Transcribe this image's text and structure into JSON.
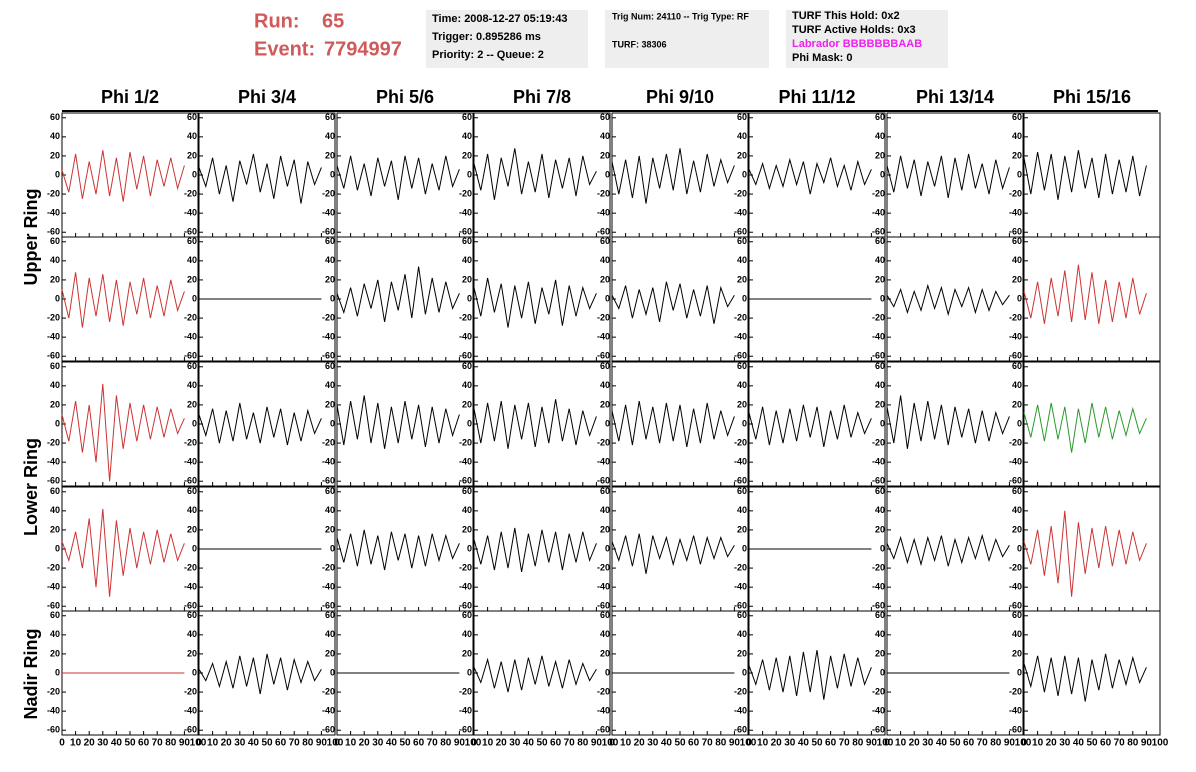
{
  "header": {
    "run_label": "Run:",
    "run": "65",
    "event_label": "Event:",
    "event": "7794997",
    "time": "Time: 2008-12-27 05:19:43",
    "trigger": "Trigger: 0.895286 ms",
    "priority": "Priority: 2 -- Queue: 2",
    "trig_num": "Trig Num: 24110 -- Trig Type: RF",
    "turf": "TURF: 38306",
    "turf_hold": "TURF This Hold: 0x2",
    "turf_active": "TURF Active Holds: 0x3",
    "labrador": "Labrador BBBBBBBAAB",
    "phi_mask": "Phi Mask: 0"
  },
  "chart_data": {
    "type": "line",
    "columns": [
      "Phi 1/2",
      "Phi 3/4",
      "Phi 5/6",
      "Phi 7/8",
      "Phi 9/10",
      "Phi 11/12",
      "Phi 13/14",
      "Phi 15/16"
    ],
    "ring_labels": [
      "Upper Ring",
      "Lower Ring",
      "Nadir Ring"
    ],
    "xlim": [
      0,
      100
    ],
    "xticks": [
      0,
      10,
      20,
      30,
      40,
      50,
      60,
      70,
      80,
      90,
      100
    ],
    "ylim": [
      -65,
      65
    ],
    "yticks": [
      -60,
      -40,
      -20,
      0,
      20,
      40,
      60
    ],
    "x": [
      0,
      5,
      10,
      15,
      20,
      25,
      30,
      35,
      40,
      45,
      50,
      55,
      60,
      65,
      70,
      75,
      80,
      85,
      90
    ],
    "panels": [
      {
        "color": "#cc3333",
        "values": [
          5,
          -18,
          22,
          -25,
          14,
          -20,
          26,
          -22,
          18,
          -28,
          24,
          -15,
          20,
          -22,
          16,
          -12,
          18,
          -14,
          10
        ]
      },
      {
        "color": "#000000",
        "values": [
          8,
          -12,
          18,
          -20,
          10,
          -28,
          15,
          -10,
          22,
          -18,
          12,
          -25,
          20,
          -12,
          16,
          -30,
          14,
          -10,
          8
        ]
      },
      {
        "color": "#000000",
        "values": [
          10,
          -14,
          20,
          -16,
          12,
          -22,
          18,
          -12,
          15,
          -26,
          20,
          -14,
          18,
          -20,
          12,
          -16,
          20,
          -12,
          6
        ]
      },
      {
        "color": "#000000",
        "values": [
          12,
          -16,
          22,
          -26,
          18,
          -12,
          28,
          -20,
          14,
          -18,
          22,
          -24,
          16,
          -14,
          18,
          -22,
          20,
          -10,
          4
        ]
      },
      {
        "color": "#000000",
        "values": [
          14,
          -20,
          16,
          -24,
          20,
          -30,
          18,
          -14,
          22,
          -16,
          28,
          -20,
          15,
          -18,
          22,
          -12,
          16,
          -8,
          10
        ]
      },
      {
        "color": "#000000",
        "values": [
          6,
          -10,
          12,
          -14,
          10,
          -12,
          16,
          -10,
          14,
          -20,
          12,
          -8,
          18,
          -12,
          10,
          -16,
          14,
          -10,
          6
        ]
      },
      {
        "color": "#000000",
        "values": [
          10,
          -18,
          20,
          -14,
          16,
          -22,
          14,
          -12,
          20,
          -24,
          18,
          -16,
          22,
          -14,
          12,
          -20,
          16,
          -14,
          8
        ]
      },
      {
        "color": "#000000",
        "values": [
          18,
          -20,
          24,
          -16,
          22,
          -26,
          20,
          -18,
          26,
          -14,
          18,
          -24,
          22,
          -20,
          16,
          -18,
          20,
          -22,
          10
        ]
      },
      {
        "color": "#cc3333",
        "values": [
          10,
          -20,
          28,
          -30,
          22,
          -18,
          26,
          -24,
          20,
          -28,
          18,
          -16,
          22,
          -20,
          14,
          -18,
          20,
          -12,
          8
        ]
      },
      {
        "color": "#000000",
        "values": [
          0,
          0,
          0,
          0,
          0,
          0,
          0,
          0,
          0,
          0,
          0,
          0,
          0,
          0,
          0,
          0,
          0,
          0,
          0
        ]
      },
      {
        "color": "#000000",
        "values": [
          6,
          -14,
          12,
          -18,
          16,
          -10,
          20,
          -24,
          18,
          -12,
          26,
          -20,
          34,
          -16,
          22,
          -14,
          18,
          -10,
          6
        ]
      },
      {
        "color": "#000000",
        "values": [
          12,
          -18,
          22,
          -14,
          16,
          -30,
          14,
          -20,
          18,
          -26,
          12,
          -16,
          20,
          -28,
          14,
          -18,
          12,
          -10,
          6
        ]
      },
      {
        "color": "#000000",
        "values": [
          4,
          -10,
          14,
          -20,
          10,
          -16,
          12,
          -24,
          18,
          -12,
          16,
          -20,
          10,
          -18,
          14,
          -26,
          12,
          -8,
          4
        ]
      },
      {
        "color": "#000000",
        "values": [
          0,
          0,
          0,
          0,
          0,
          0,
          0,
          0,
          0,
          0,
          0,
          0,
          0,
          0,
          0,
          0,
          0,
          0,
          0
        ]
      },
      {
        "color": "#000000",
        "values": [
          4,
          -8,
          10,
          -14,
          8,
          -12,
          14,
          -10,
          12,
          -16,
          10,
          -8,
          12,
          -14,
          10,
          -12,
          8,
          -6,
          4
        ]
      },
      {
        "color": "#cc3333",
        "values": [
          8,
          -20,
          18,
          -26,
          22,
          -18,
          30,
          -24,
          36,
          -22,
          28,
          -26,
          20,
          -24,
          18,
          -20,
          22,
          -16,
          6
        ]
      },
      {
        "color": "#cc3333",
        "values": [
          10,
          -18,
          24,
          -30,
          20,
          -40,
          42,
          -60,
          30,
          -26,
          22,
          -18,
          20,
          -16,
          18,
          -14,
          16,
          -10,
          6
        ]
      },
      {
        "color": "#000000",
        "values": [
          10,
          -12,
          16,
          -20,
          14,
          -18,
          22,
          -16,
          12,
          -20,
          18,
          -14,
          16,
          -22,
          12,
          -18,
          14,
          -10,
          6
        ]
      },
      {
        "color": "#000000",
        "values": [
          20,
          -22,
          24,
          -16,
          30,
          -20,
          22,
          -26,
          18,
          -20,
          24,
          -16,
          20,
          -24,
          18,
          -20,
          16,
          -12,
          10
        ]
      },
      {
        "color": "#000000",
        "values": [
          16,
          -20,
          22,
          -18,
          24,
          -26,
          20,
          -16,
          22,
          -24,
          18,
          -20,
          26,
          -18,
          16,
          -22,
          14,
          -12,
          8
        ]
      },
      {
        "color": "#000000",
        "values": [
          14,
          -18,
          20,
          -22,
          24,
          -16,
          18,
          -20,
          22,
          -18,
          20,
          -24,
          16,
          -20,
          22,
          -16,
          14,
          -12,
          8
        ]
      },
      {
        "color": "#000000",
        "values": [
          12,
          -16,
          18,
          -22,
          14,
          -20,
          16,
          -18,
          20,
          -14,
          18,
          -24,
          14,
          -16,
          20,
          -14,
          12,
          -10,
          6
        ]
      },
      {
        "color": "#000000",
        "values": [
          18,
          -20,
          30,
          -26,
          22,
          -18,
          24,
          -16,
          20,
          -22,
          18,
          -14,
          16,
          -20,
          14,
          -18,
          12,
          -10,
          8
        ]
      },
      {
        "color": "#2a9a2a",
        "values": [
          12,
          -14,
          20,
          -18,
          22,
          -16,
          18,
          -30,
          16,
          -20,
          22,
          -14,
          18,
          -16,
          14,
          -12,
          16,
          -10,
          6
        ]
      },
      {
        "color": "#cc3333",
        "values": [
          8,
          -12,
          18,
          -20,
          32,
          -40,
          42,
          -50,
          30,
          -28,
          22,
          -20,
          18,
          -16,
          20,
          -14,
          16,
          -12,
          6
        ]
      },
      {
        "color": "#000000",
        "values": [
          0,
          0,
          0,
          0,
          0,
          0,
          0,
          0,
          0,
          0,
          0,
          0,
          0,
          0,
          0,
          0,
          0,
          0,
          0
        ]
      },
      {
        "color": "#000000",
        "values": [
          12,
          -14,
          16,
          -18,
          20,
          -16,
          14,
          -22,
          18,
          -12,
          16,
          -20,
          14,
          -18,
          16,
          -12,
          14,
          -10,
          6
        ]
      },
      {
        "color": "#000000",
        "values": [
          10,
          -16,
          14,
          -22,
          18,
          -20,
          22,
          -24,
          16,
          -18,
          20,
          -14,
          18,
          -22,
          16,
          -14,
          18,
          -12,
          6
        ]
      },
      {
        "color": "#000000",
        "values": [
          8,
          -12,
          14,
          -18,
          16,
          -26,
          14,
          -10,
          12,
          -16,
          10,
          -12,
          14,
          -16,
          12,
          -10,
          12,
          -8,
          4
        ]
      },
      {
        "color": "#000000",
        "values": [
          0,
          0,
          0,
          0,
          0,
          0,
          0,
          0,
          0,
          0,
          0,
          0,
          0,
          0,
          0,
          0,
          0,
          0,
          0
        ]
      },
      {
        "color": "#000000",
        "values": [
          6,
          -10,
          12,
          -14,
          10,
          -16,
          12,
          -12,
          14,
          -18,
          10,
          -14,
          12,
          -10,
          14,
          -12,
          10,
          -8,
          4
        ]
      },
      {
        "color": "#cc3333",
        "values": [
          8,
          -16,
          20,
          -28,
          24,
          -36,
          40,
          -50,
          28,
          -26,
          22,
          -20,
          24,
          -18,
          20,
          -16,
          18,
          -12,
          6
        ]
      },
      {
        "color": "#cc3333",
        "values": [
          0,
          0,
          0,
          0,
          0,
          0,
          0,
          0,
          0,
          0,
          0,
          0,
          0,
          0,
          0,
          0,
          0,
          0,
          0
        ]
      },
      {
        "color": "#000000",
        "values": [
          4,
          -8,
          10,
          -14,
          12,
          -16,
          18,
          -14,
          16,
          -22,
          20,
          -12,
          16,
          -18,
          14,
          -10,
          12,
          -8,
          4
        ]
      },
      {
        "color": "#000000",
        "values": [
          0,
          0,
          0,
          0,
          0,
          0,
          0,
          0,
          0,
          0,
          0,
          0,
          0,
          0,
          0,
          0,
          0,
          0,
          0
        ]
      },
      {
        "color": "#000000",
        "values": [
          6,
          -10,
          14,
          -16,
          12,
          -20,
          14,
          -18,
          16,
          -12,
          18,
          -14,
          12,
          -16,
          14,
          -12,
          10,
          -8,
          4
        ]
      },
      {
        "color": "#000000",
        "values": [
          0,
          0,
          0,
          0,
          0,
          0,
          0,
          0,
          0,
          0,
          0,
          0,
          0,
          0,
          0,
          0,
          0,
          0,
          0
        ]
      },
      {
        "color": "#000000",
        "values": [
          8,
          -12,
          14,
          -18,
          16,
          -20,
          18,
          -24,
          22,
          -20,
          24,
          -28,
          18,
          -16,
          20,
          -14,
          16,
          -12,
          6
        ]
      },
      {
        "color": "#000000",
        "values": [
          0,
          0,
          0,
          0,
          0,
          0,
          0,
          0,
          0,
          0,
          0,
          0,
          0,
          0,
          0,
          0,
          0,
          0,
          0
        ]
      },
      {
        "color": "#000000",
        "values": [
          10,
          -14,
          18,
          -20,
          16,
          -24,
          18,
          -22,
          16,
          -30,
          14,
          -18,
          20,
          -16,
          14,
          -12,
          16,
          -10,
          6
        ]
      }
    ]
  }
}
